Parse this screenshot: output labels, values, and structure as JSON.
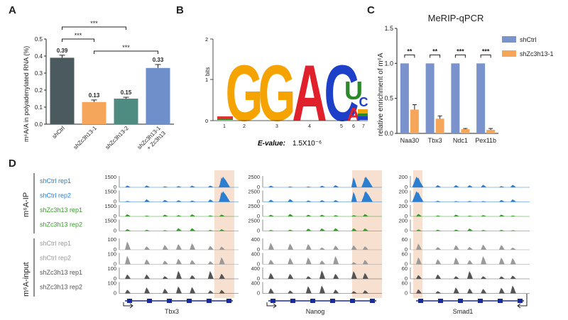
{
  "panel_a": {
    "letter": "A",
    "ylabel": "m⁶A/A in polyadenylated RNA (%)",
    "sig": [
      "***",
      "***",
      "***"
    ],
    "chart_data": {
      "type": "bar",
      "categories": [
        "shCtrl",
        "shZc3h13-1",
        "shZc3h13-2",
        "shZc3h13-1 + Zc3h13"
      ],
      "values": [
        0.39,
        0.13,
        0.15,
        0.33
      ],
      "value_labels": [
        "0.39",
        "0.13",
        "0.15",
        "0.33"
      ],
      "errors": [
        0.015,
        0.012,
        0.008,
        0.02
      ],
      "colors": [
        "#4a5a5f",
        "#f5a65b",
        "#4e8b80",
        "#6e8fc9"
      ],
      "ylim": [
        0,
        0.5
      ],
      "yticks": [
        "0.0",
        "0.1",
        "0.2",
        "0.3",
        "0.4",
        "0.5"
      ]
    }
  },
  "panel_b": {
    "letter": "B",
    "ylabel": "bits",
    "evalue_label": "E-value:",
    "evalue": "1.5X10⁻⁶",
    "motif_letters": [
      "G",
      "G",
      "A",
      "C",
      "U",
      "A",
      "C"
    ],
    "positions": [
      "1",
      "2",
      "3",
      "4",
      "5",
      "6",
      "7"
    ],
    "yticks": [
      "0",
      "1",
      "2"
    ]
  },
  "panel_c": {
    "letter": "C",
    "title": "MeRIP-qPCR",
    "ylabel": "relative enrichment of m⁶A",
    "sig": [
      "**",
      "**",
      "***",
      "***"
    ],
    "chart_data": {
      "type": "bar",
      "categories": [
        "Naa30",
        "Tbx3",
        "Ndc1",
        "Pex11b"
      ],
      "series": [
        {
          "name": "shCtrl",
          "values": [
            1.0,
            1.0,
            1.0,
            1.0
          ],
          "color": "#7a93cc"
        },
        {
          "name": "shZc3h13-1",
          "values": [
            0.34,
            0.21,
            0.06,
            0.05
          ],
          "errors": [
            0.07,
            0.04,
            0.01,
            0.02
          ],
          "color": "#f5a65b"
        }
      ],
      "ylim": [
        0,
        1.5
      ],
      "yticks": [
        "0.0",
        "0.5",
        "1.0",
        "1.5"
      ]
    }
  },
  "panel_d": {
    "letter": "D",
    "group_ip": "m⁶A-IP",
    "group_input": "m⁶A-input",
    "tracks": [
      {
        "label": "shCtrl rep1",
        "color": "#2a7fd0",
        "group": "ip"
      },
      {
        "label": "shCtrl rep2",
        "color": "#2a7fd0",
        "group": "ip"
      },
      {
        "label": "shZc3h13 rep1",
        "color": "#3a9a2e",
        "group": "ip"
      },
      {
        "label": "shZc3h13 rep2",
        "color": "#3a9a2e",
        "group": "ip"
      },
      {
        "label": "shCtrl rep1",
        "color": "#9a9a9a",
        "group": "input"
      },
      {
        "label": "shCtrl rep2",
        "color": "#9a9a9a",
        "group": "input"
      },
      {
        "label": "shZc3h13 rep1",
        "color": "#555555",
        "group": "input"
      },
      {
        "label": "shZc3h13 rep2",
        "color": "#555555",
        "group": "input"
      }
    ],
    "genes": [
      {
        "name": "Tbx3",
        "ip_ticks": [
          "1500",
          "0"
        ],
        "input_ticks": [
          "100",
          "0"
        ]
      },
      {
        "name": "Nanog",
        "ip_ticks": [
          "2500",
          "0"
        ],
        "input_ticks": [
          "400",
          "0"
        ]
      },
      {
        "name": "Smad1",
        "ip_ticks": [
          "200",
          "0"
        ],
        "input_ticks": [
          "60",
          "0"
        ]
      }
    ],
    "highlight_color": "#f6d5c2"
  }
}
